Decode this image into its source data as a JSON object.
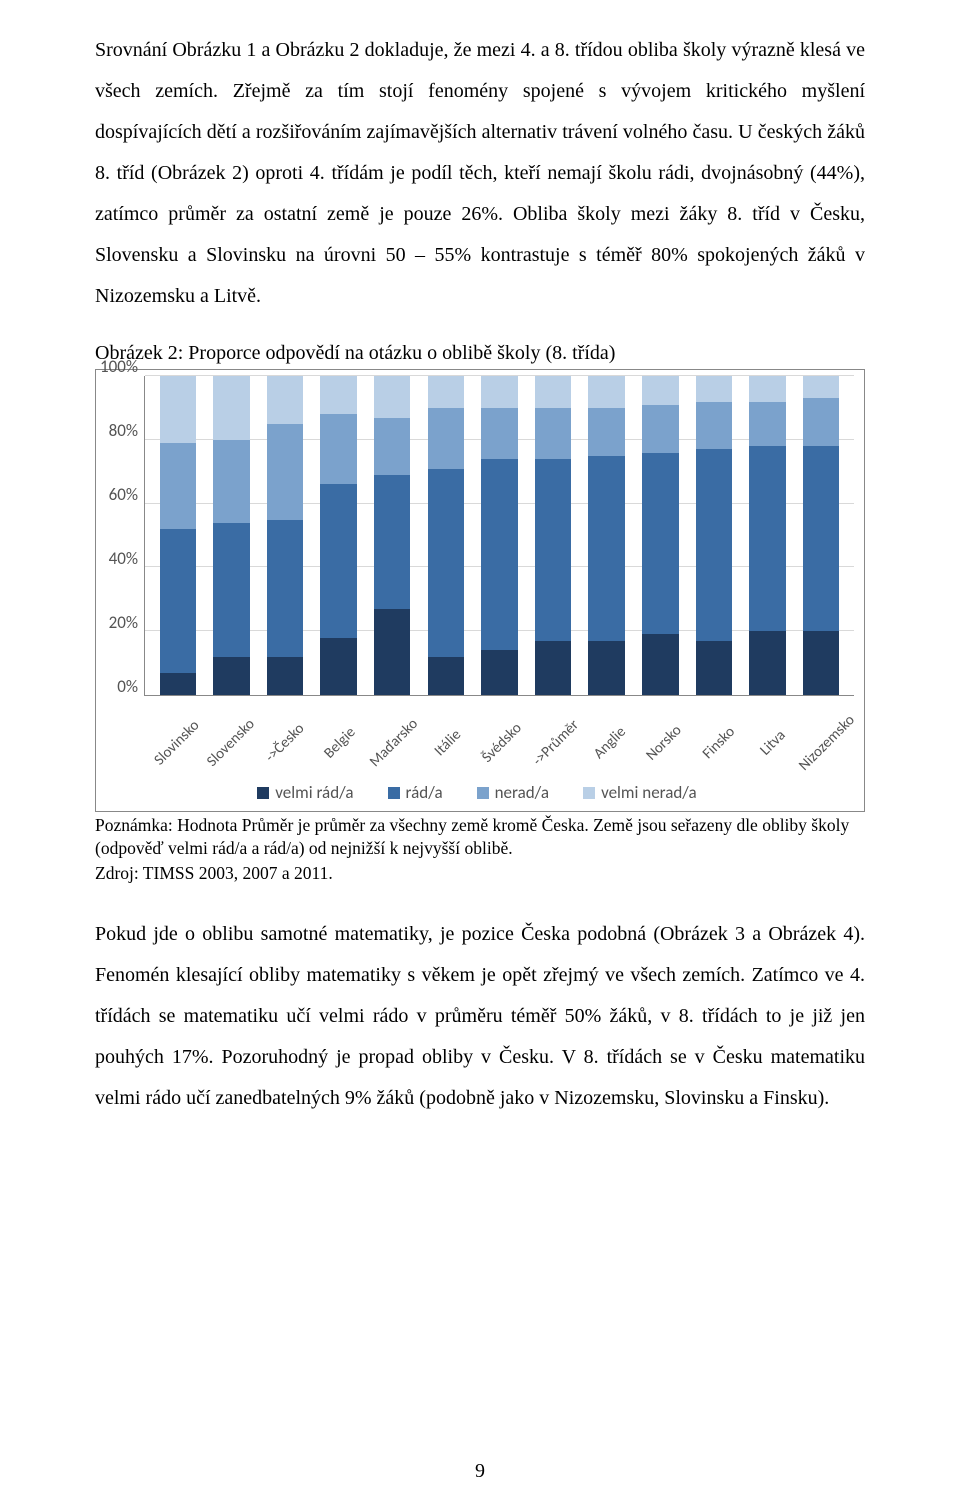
{
  "paragraphs": {
    "p1": "Srovnání Obrázku 1 a Obrázku 2 dokladuje, že mezi 4. a 8. třídou obliba školy výrazně klesá ve všech zemích. Zřejmě za tím stojí fenomény spojené s vývojem kritického myšlení dospívajících dětí a rozšiřováním zajímavějších alternativ trávení volného času. U českých žáků 8. tříd (Obrázek 2) oproti 4. třídám je podíl těch, kteří nemají školu rádi, dvojnásobný (44%), zatímco průměr za ostatní země je pouze 26%. Obliba školy mezi žáky 8. tříd v Česku, Slovensku a Slovinsku na úrovni 50 – 55% kontrastuje s téměř 80% spokojených žáků v Nizozemsku a Litvě.",
    "p2": "Pokud jde o oblibu samotné matematiky, je pozice Česka podobná (Obrázek 3 a Obrázek 4). Fenomén klesající obliby matematiky s věkem je opět zřejmý ve všech zemích. Zatímco ve 4. třídách se matematiku učí velmi rádo v průměru téměř 50% žáků, v 8. třídách to je již jen pouhých 17%. Pozoruhodný je propad obliby v Česku. V 8. třídách se v Česku matematiku velmi rádo učí zanedbatelných 9% žáků (podobně jako v Nizozemsku, Slovinsku a Finsku)."
  },
  "chart": {
    "title": "Obrázek 2: Proporce odpovědí na otázku o oblibě školy (8. třída)",
    "y_ticks": [
      "100%",
      "80%",
      "60%",
      "40%",
      "20%",
      "0%"
    ],
    "ylim": [
      0,
      100
    ],
    "grid_color": "#d9d9d9",
    "border_color": "#888888",
    "categories": [
      "Slovinsko",
      "Slovensko",
      "->Česko",
      "Belgie",
      "Maďarsko",
      "Itálie",
      "Švédsko",
      "->Průměr",
      "Anglie",
      "Norsko",
      "Finsko",
      "Litva",
      "Nizozemsko"
    ],
    "series": [
      {
        "key": "velmi_rad",
        "label": "velmi rád/a",
        "color": "#1f3b60"
      },
      {
        "key": "rad",
        "label": "rád/a",
        "color": "#3a6ca4"
      },
      {
        "key": "nerad",
        "label": "nerad/a",
        "color": "#7ba2cc"
      },
      {
        "key": "velmi_nerad",
        "label": "velmi nerad/a",
        "color": "#b9cfe6"
      }
    ],
    "data": [
      {
        "velmi_rad": 7,
        "rad": 45,
        "nerad": 27,
        "velmi_nerad": 21
      },
      {
        "velmi_rad": 12,
        "rad": 42,
        "nerad": 26,
        "velmi_nerad": 20
      },
      {
        "velmi_rad": 12,
        "rad": 43,
        "nerad": 30,
        "velmi_nerad": 15
      },
      {
        "velmi_rad": 18,
        "rad": 48,
        "nerad": 22,
        "velmi_nerad": 12
      },
      {
        "velmi_rad": 27,
        "rad": 42,
        "nerad": 18,
        "velmi_nerad": 13
      },
      {
        "velmi_rad": 12,
        "rad": 59,
        "nerad": 19,
        "velmi_nerad": 10
      },
      {
        "velmi_rad": 14,
        "rad": 60,
        "nerad": 16,
        "velmi_nerad": 10
      },
      {
        "velmi_rad": 17,
        "rad": 57,
        "nerad": 16,
        "velmi_nerad": 10
      },
      {
        "velmi_rad": 17,
        "rad": 58,
        "nerad": 15,
        "velmi_nerad": 10
      },
      {
        "velmi_rad": 19,
        "rad": 57,
        "nerad": 15,
        "velmi_nerad": 9
      },
      {
        "velmi_rad": 17,
        "rad": 60,
        "nerad": 15,
        "velmi_nerad": 8
      },
      {
        "velmi_rad": 20,
        "rad": 58,
        "nerad": 14,
        "velmi_nerad": 8
      },
      {
        "velmi_rad": 20,
        "rad": 58,
        "nerad": 15,
        "velmi_nerad": 7
      }
    ],
    "legend_labels": {
      "velmi_rad": "velmi rád/a",
      "rad": "rád/a",
      "nerad": "nerad/a",
      "velmi_nerad": "velmi nerad/a"
    }
  },
  "note": {
    "line1": "Poznámka: Hodnota Průměr je průměr za všechny země kromě Česka. Země jsou seřazeny dle obliby školy (odpověď velmi rád/a a rád/a) od nejnižší k nejvyšší oblibě.",
    "line2": "Zdroj: TIMSS 2003, 2007 a 2011."
  },
  "page_number": "9"
}
